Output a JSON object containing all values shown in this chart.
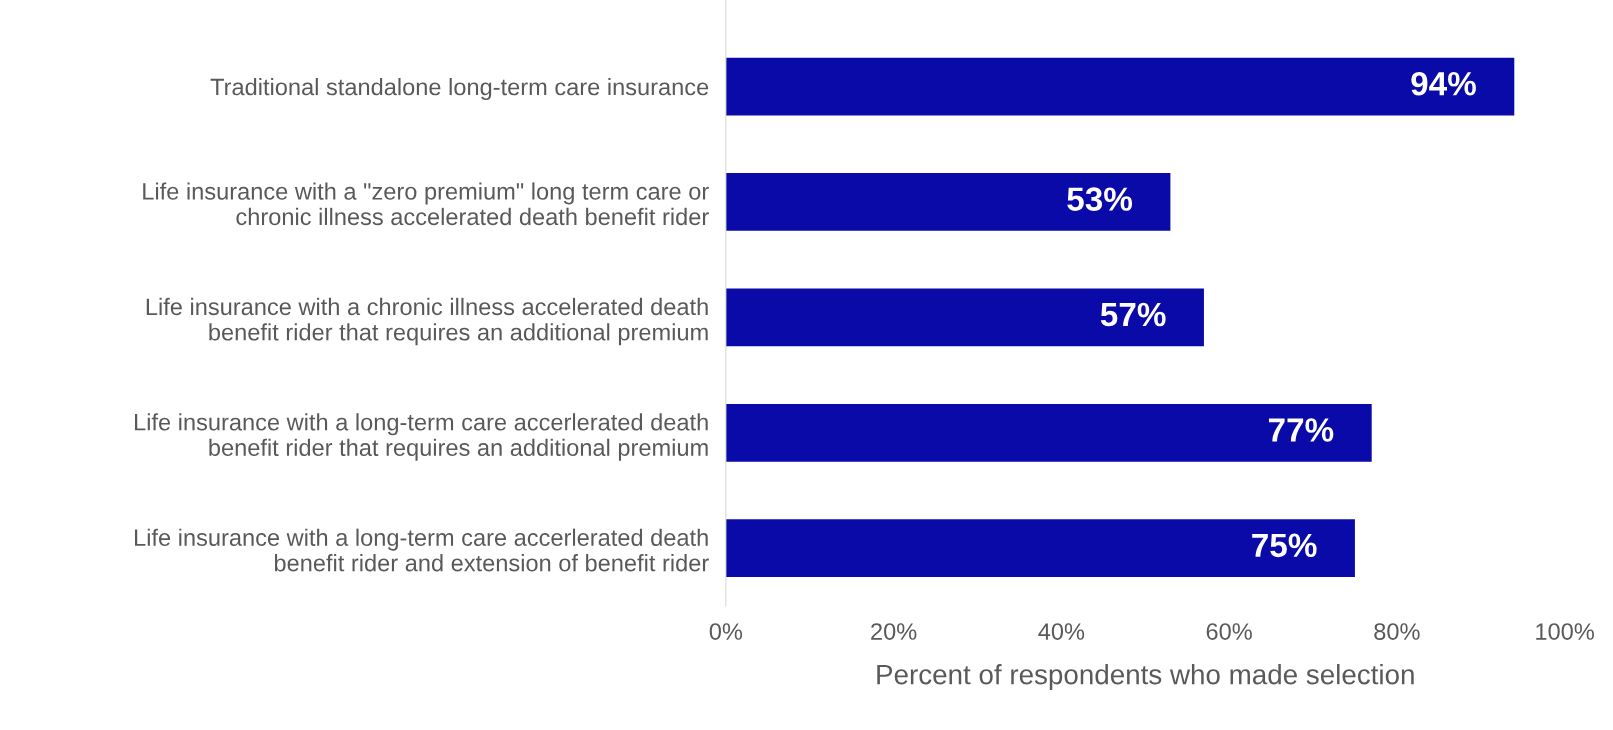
{
  "chart_data": {
    "type": "bar",
    "orientation": "horizontal",
    "xlabel": "Percent of respondents who made selection",
    "categories": [
      "Traditional standalone long-term care insurance",
      "Life insurance with a \"zero premium\" long term care or\nchronic illness accelerated death benefit rider",
      "Life insurance with a chronic illness accelerated death\nbenefit rider that requires an additional premium",
      "Life insurance with a long-term care accerlerated death\nbenefit rider that requires an additional premium",
      "Life insurance with a long-term care accerlerated death\nbenefit rider and extension of benefit rider"
    ],
    "values": [
      94,
      53,
      57,
      77,
      75
    ],
    "value_labels": [
      "94%",
      "53%",
      "57%",
      "77%",
      "75%"
    ],
    "color": "#0a0aa8",
    "xlim": [
      0,
      100
    ],
    "xticks": [
      {
        "value": 0,
        "label": "0%"
      },
      {
        "value": 20,
        "label": "20%"
      },
      {
        "value": 40,
        "label": "40%"
      },
      {
        "value": 60,
        "label": "60%"
      },
      {
        "value": 80,
        "label": "80%"
      },
      {
        "value": 100,
        "label": "100%"
      }
    ],
    "grid": false,
    "legend": false
  }
}
